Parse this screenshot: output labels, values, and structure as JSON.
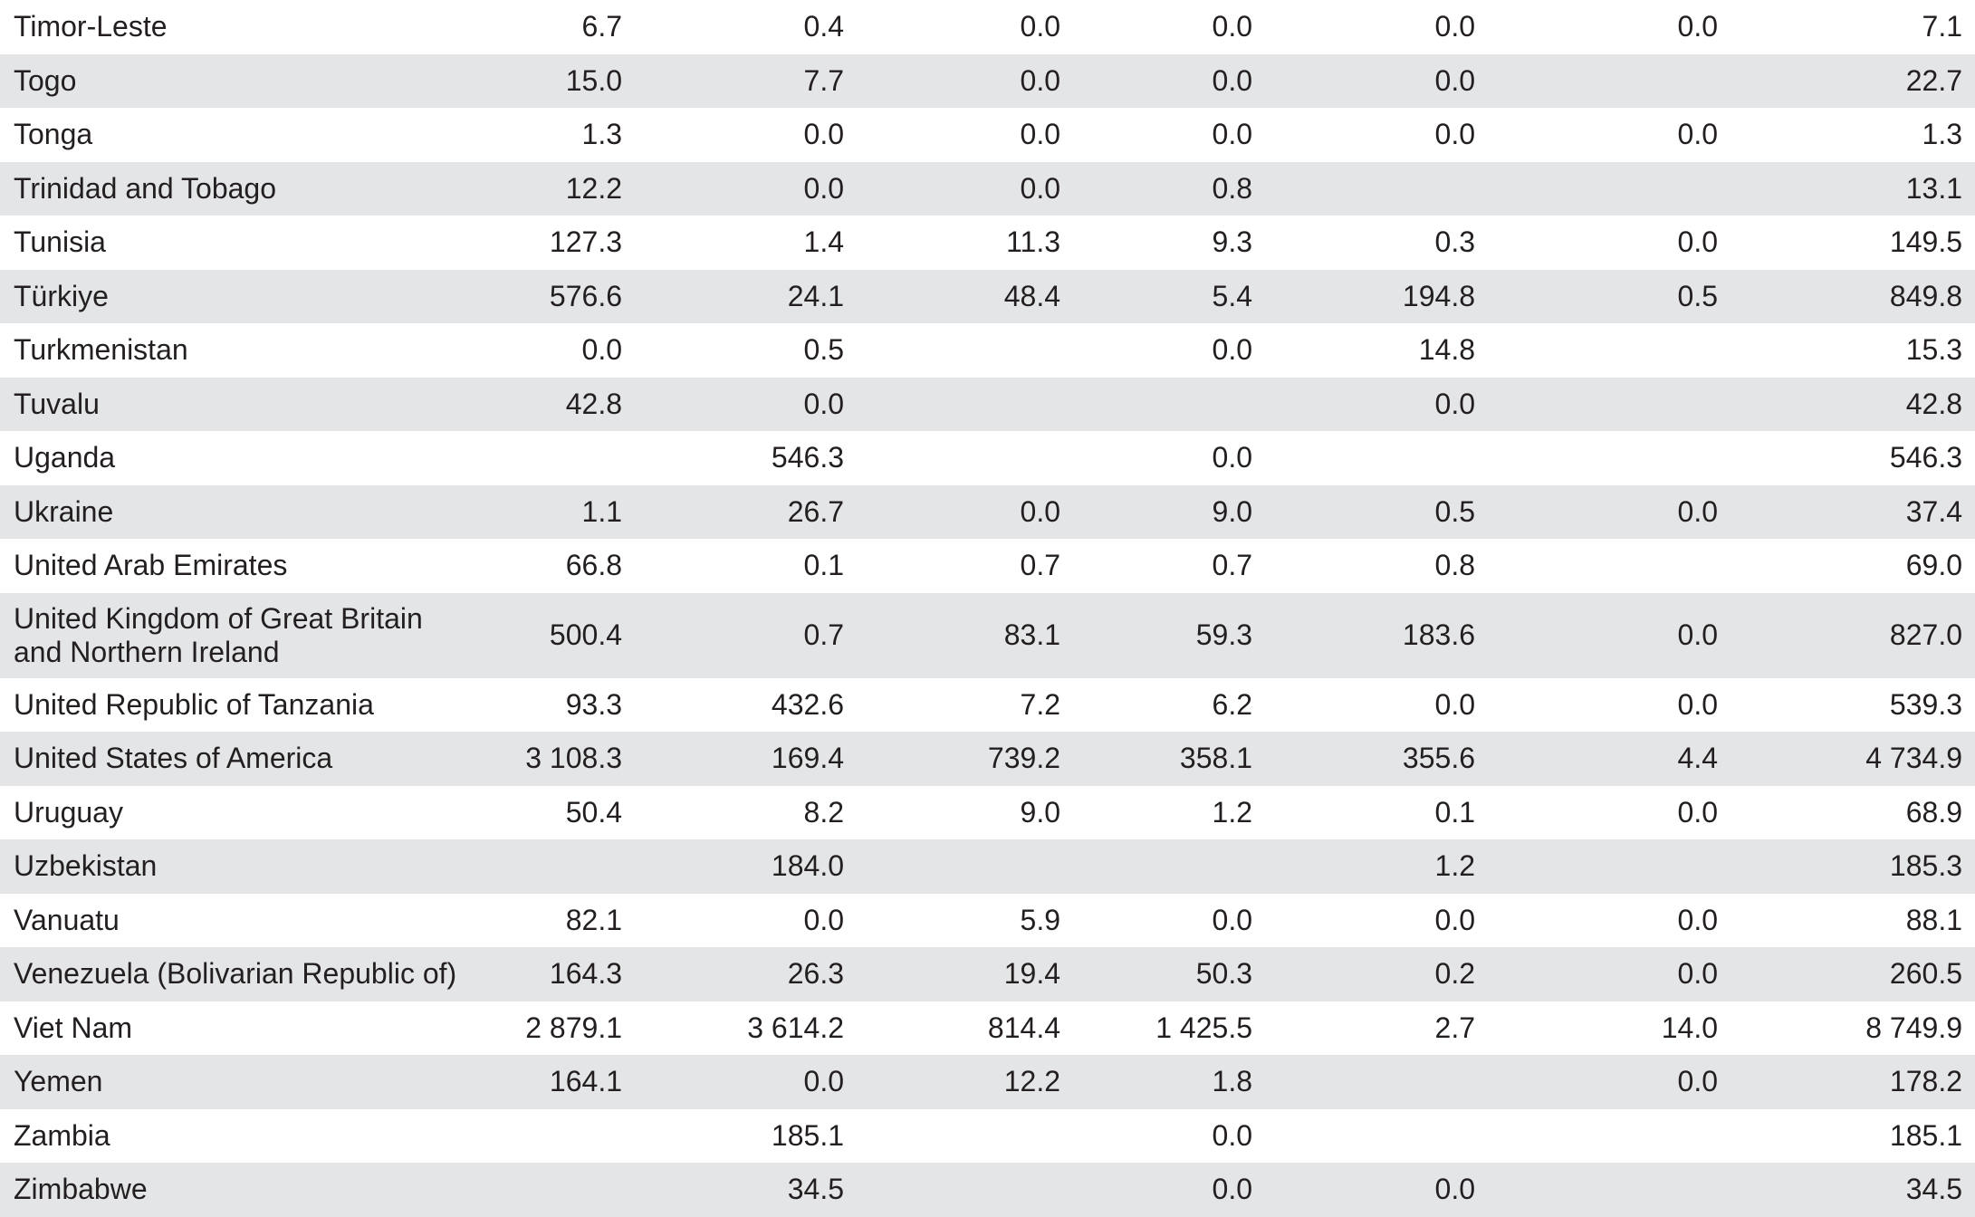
{
  "table": {
    "rows": [
      {
        "country": "Timor-Leste",
        "values": [
          "6.7",
          "0.4",
          "0.0",
          "0.0",
          "0.0",
          "0.0",
          "7.1"
        ]
      },
      {
        "country": "Togo",
        "values": [
          "15.0",
          "7.7",
          "0.0",
          "0.0",
          "0.0",
          "",
          "22.7"
        ]
      },
      {
        "country": "Tonga",
        "values": [
          "1.3",
          "0.0",
          "0.0",
          "0.0",
          "0.0",
          "0.0",
          "1.3"
        ]
      },
      {
        "country": "Trinidad and Tobago",
        "values": [
          "12.2",
          "0.0",
          "0.0",
          "0.8",
          "",
          "",
          "13.1"
        ]
      },
      {
        "country": "Tunisia",
        "values": [
          "127.3",
          "1.4",
          "11.3",
          "9.3",
          "0.3",
          "0.0",
          "149.5"
        ]
      },
      {
        "country": "Türkiye",
        "values": [
          "576.6",
          "24.1",
          "48.4",
          "5.4",
          "194.8",
          "0.5",
          "849.8"
        ]
      },
      {
        "country": "Turkmenistan",
        "values": [
          "0.0",
          "0.5",
          "",
          "0.0",
          "14.8",
          "",
          "15.3"
        ]
      },
      {
        "country": "Tuvalu",
        "values": [
          "42.8",
          "0.0",
          "",
          "",
          "0.0",
          "",
          "42.8"
        ]
      },
      {
        "country": "Uganda",
        "values": [
          "",
          "546.3",
          "",
          "0.0",
          "",
          "",
          "546.3"
        ]
      },
      {
        "country": "Ukraine",
        "values": [
          "1.1",
          "26.7",
          "0.0",
          "9.0",
          "0.5",
          "0.0",
          "37.4"
        ]
      },
      {
        "country": "United Arab Emirates",
        "values": [
          "66.8",
          "0.1",
          "0.7",
          "0.7",
          "0.8",
          "",
          "69.0"
        ]
      },
      {
        "country": "United Kingdom of Great Britain and Northern Ireland",
        "values": [
          "500.4",
          "0.7",
          "83.1",
          "59.3",
          "183.6",
          "0.0",
          "827.0"
        ]
      },
      {
        "country": "United Republic of Tanzania",
        "values": [
          "93.3",
          "432.6",
          "7.2",
          "6.2",
          "0.0",
          "0.0",
          "539.3"
        ]
      },
      {
        "country": "United States of America",
        "values": [
          "3 108.3",
          "169.4",
          "739.2",
          "358.1",
          "355.6",
          "4.4",
          "4 734.9"
        ]
      },
      {
        "country": "Uruguay",
        "values": [
          "50.4",
          "8.2",
          "9.0",
          "1.2",
          "0.1",
          "0.0",
          "68.9"
        ]
      },
      {
        "country": "Uzbekistan",
        "values": [
          "",
          "184.0",
          "",
          "",
          "1.2",
          "",
          "185.3"
        ]
      },
      {
        "country": "Vanuatu",
        "values": [
          "82.1",
          "0.0",
          "5.9",
          "0.0",
          "0.0",
          "0.0",
          "88.1"
        ]
      },
      {
        "country": "Venezuela (Bolivarian Republic of)",
        "values": [
          "164.3",
          "26.3",
          "19.4",
          "50.3",
          "0.2",
          "0.0",
          "260.5"
        ]
      },
      {
        "country": "Viet Nam",
        "values": [
          "2 879.1",
          "3 614.2",
          "814.4",
          "1 425.5",
          "2.7",
          "14.0",
          "8 749.9"
        ]
      },
      {
        "country": "Yemen",
        "values": [
          "164.1",
          "0.0",
          "12.2",
          "1.8",
          "",
          "0.0",
          "178.2"
        ]
      },
      {
        "country": "Zambia",
        "values": [
          "",
          "185.1",
          "",
          "0.0",
          "",
          "",
          "185.1"
        ]
      },
      {
        "country": "Zimbabwe",
        "values": [
          "",
          "34.5",
          "",
          "0.0",
          "0.0",
          "",
          "34.5"
        ]
      }
    ]
  }
}
